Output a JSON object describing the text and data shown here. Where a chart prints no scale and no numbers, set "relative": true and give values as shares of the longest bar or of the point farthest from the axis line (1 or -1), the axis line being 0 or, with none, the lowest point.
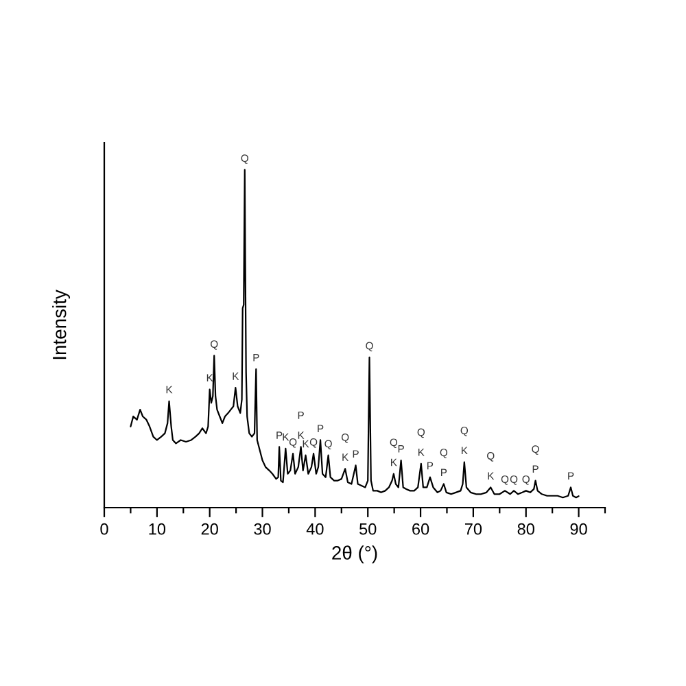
{
  "chart_data": {
    "type": "line",
    "relative": true,
    "xlabel": "2θ (°)",
    "ylabel": "Intensity",
    "tick_labels": "x",
    "xlim": [
      0,
      95
    ],
    "xticks": [
      0,
      {
        "value": 5,
        "label": null
      },
      10,
      {
        "value": 15,
        "label": null
      },
      20,
      {
        "value": 25,
        "label": null
      },
      30,
      {
        "value": 35,
        "label": null
      },
      40,
      {
        "value": 45,
        "label": null
      },
      50,
      {
        "value": 55,
        "label": null
      },
      60,
      {
        "value": 65,
        "label": null
      },
      70,
      {
        "value": 75,
        "label": null
      },
      80,
      {
        "value": 85,
        "label": null
      },
      90,
      {
        "value": 95,
        "label": null
      }
    ],
    "series": [
      {
        "color": "#000000",
        "x": [
          5.0,
          5.5,
          6.2,
          6.8,
          7.3,
          8.0,
          8.6,
          9.3,
          10.0,
          10.8,
          11.5,
          12.0,
          12.3,
          12.7,
          13.0,
          13.6,
          14.5,
          15.5,
          16.5,
          17.3,
          18.0,
          18.6,
          19.3,
          19.7,
          20.0,
          20.3,
          20.6,
          20.85,
          21.1,
          21.4,
          21.9,
          22.4,
          22.9,
          23.5,
          24.0,
          24.5,
          24.9,
          25.3,
          25.8,
          26.1,
          26.25,
          26.45,
          26.55,
          26.65,
          26.75,
          26.9,
          27.1,
          27.5,
          28.0,
          28.5,
          28.8,
          29.0,
          29.5,
          30.0,
          30.6,
          31.3,
          31.9,
          32.6,
          33.0,
          33.2,
          33.5,
          33.9,
          34.4,
          34.8,
          35.3,
          35.8,
          36.2,
          36.8,
          37.3,
          37.7,
          38.2,
          38.7,
          39.3,
          39.7,
          40.2,
          40.6,
          41.0,
          41.4,
          42.0,
          42.5,
          42.9,
          43.6,
          44.3,
          45.0,
          45.7,
          46.2,
          46.9,
          47.7,
          48.1,
          48.8,
          49.5,
          50.0,
          50.3,
          50.6,
          51.0,
          51.8,
          52.5,
          53.3,
          54.0,
          54.6,
          54.9,
          55.3,
          55.8,
          56.3,
          56.7,
          57.3,
          58.0,
          58.8,
          59.5,
          60.1,
          60.5,
          61.2,
          61.8,
          62.4,
          63.2,
          63.8,
          64.4,
          64.9,
          65.8,
          66.7,
          67.6,
          68.0,
          68.3,
          68.7,
          69.5,
          70.5,
          71.5,
          72.5,
          73.3,
          74.0,
          75.0,
          76.0,
          77.0,
          77.7,
          78.5,
          79.3,
          80.0,
          80.8,
          81.5,
          81.8,
          82.2,
          83.0,
          84.0,
          85.0,
          86.0,
          87.0,
          88.0,
          88.5,
          88.9,
          89.5,
          90.0
        ],
        "values": [
          0.24,
          0.27,
          0.26,
          0.29,
          0.27,
          0.26,
          0.24,
          0.21,
          0.2,
          0.21,
          0.22,
          0.25,
          0.315,
          0.24,
          0.2,
          0.19,
          0.2,
          0.195,
          0.2,
          0.21,
          0.22,
          0.235,
          0.22,
          0.24,
          0.35,
          0.31,
          0.33,
          0.45,
          0.33,
          0.29,
          0.27,
          0.25,
          0.27,
          0.28,
          0.29,
          0.3,
          0.355,
          0.3,
          0.28,
          0.32,
          0.59,
          0.6,
          0.8,
          1.0,
          0.73,
          0.4,
          0.27,
          0.22,
          0.21,
          0.22,
          0.41,
          0.2,
          0.17,
          0.14,
          0.12,
          0.11,
          0.1,
          0.085,
          0.09,
          0.18,
          0.08,
          0.075,
          0.175,
          0.1,
          0.11,
          0.16,
          0.1,
          0.12,
          0.18,
          0.11,
          0.155,
          0.1,
          0.12,
          0.16,
          0.1,
          0.12,
          0.2,
          0.1,
          0.09,
          0.155,
          0.09,
          0.08,
          0.08,
          0.085,
          0.115,
          0.075,
          0.07,
          0.125,
          0.07,
          0.065,
          0.06,
          0.08,
          0.445,
          0.08,
          0.05,
          0.05,
          0.045,
          0.05,
          0.06,
          0.08,
          0.1,
          0.07,
          0.06,
          0.14,
          0.06,
          0.055,
          0.05,
          0.05,
          0.06,
          0.13,
          0.06,
          0.06,
          0.09,
          0.06,
          0.045,
          0.05,
          0.07,
          0.045,
          0.04,
          0.045,
          0.05,
          0.07,
          0.135,
          0.06,
          0.045,
          0.04,
          0.04,
          0.045,
          0.06,
          0.04,
          0.04,
          0.05,
          0.04,
          0.05,
          0.04,
          0.045,
          0.05,
          0.045,
          0.055,
          0.08,
          0.05,
          0.04,
          0.035,
          0.035,
          0.035,
          0.03,
          0.035,
          0.06,
          0.035,
          0.03,
          0.034
        ]
      }
    ],
    "annotations": [
      {
        "text": "K",
        "x": 12.3,
        "y": 0.315
      },
      {
        "text": "K",
        "x": 20.0,
        "y": 0.35
      },
      {
        "text": "Q",
        "x": 20.85,
        "y": 0.45
      },
      {
        "text": "K",
        "x": 24.9,
        "y": 0.355
      },
      {
        "text": "Q",
        "x": 26.65,
        "y": 1.0
      },
      {
        "text": "P",
        "x": 28.8,
        "y": 0.41
      },
      {
        "text": "P",
        "x": 33.2,
        "y": 0.18
      },
      {
        "text": "K",
        "x": 34.4,
        "y": 0.175
      },
      {
        "text": "Q",
        "x": 35.8,
        "y": 0.16
      },
      {
        "text": "K",
        "x": 37.3,
        "y": 0.18
      },
      {
        "text": "P",
        "x": 37.3,
        "y": 0.18
      },
      {
        "text": "K",
        "x": 38.2,
        "y": 0.155
      },
      {
        "text": "Q",
        "x": 39.7,
        "y": 0.16
      },
      {
        "text": "P",
        "x": 41.0,
        "y": 0.2
      },
      {
        "text": "Q",
        "x": 42.5,
        "y": 0.155
      },
      {
        "text": "K",
        "x": 45.7,
        "y": 0.115
      },
      {
        "text": "Q",
        "x": 45.7,
        "y": 0.115
      },
      {
        "text": "P",
        "x": 47.7,
        "y": 0.125
      },
      {
        "text": "Q",
        "x": 50.3,
        "y": 0.445
      },
      {
        "text": "K",
        "x": 54.9,
        "y": 0.1
      },
      {
        "text": "Q",
        "x": 54.9,
        "y": 0.1
      },
      {
        "text": "P",
        "x": 56.3,
        "y": 0.14
      },
      {
        "text": "K",
        "x": 60.1,
        "y": 0.13
      },
      {
        "text": "Q",
        "x": 60.1,
        "y": 0.13
      },
      {
        "text": "P",
        "x": 61.8,
        "y": 0.09
      },
      {
        "text": "P",
        "x": 64.4,
        "y": 0.07
      },
      {
        "text": "Q",
        "x": 64.4,
        "y": 0.07
      },
      {
        "text": "K",
        "x": 68.3,
        "y": 0.135
      },
      {
        "text": "Q",
        "x": 68.3,
        "y": 0.135
      },
      {
        "text": "K",
        "x": 73.3,
        "y": 0.06
      },
      {
        "text": "Q",
        "x": 73.3,
        "y": 0.06
      },
      {
        "text": "Q",
        "x": 76.0,
        "y": 0.05
      },
      {
        "text": "Q",
        "x": 77.7,
        "y": 0.05
      },
      {
        "text": "Q",
        "x": 80.0,
        "y": 0.05
      },
      {
        "text": "P",
        "x": 81.8,
        "y": 0.08
      },
      {
        "text": "Q",
        "x": 81.8,
        "y": 0.08
      },
      {
        "text": "P",
        "x": 88.5,
        "y": 0.06
      }
    ]
  }
}
